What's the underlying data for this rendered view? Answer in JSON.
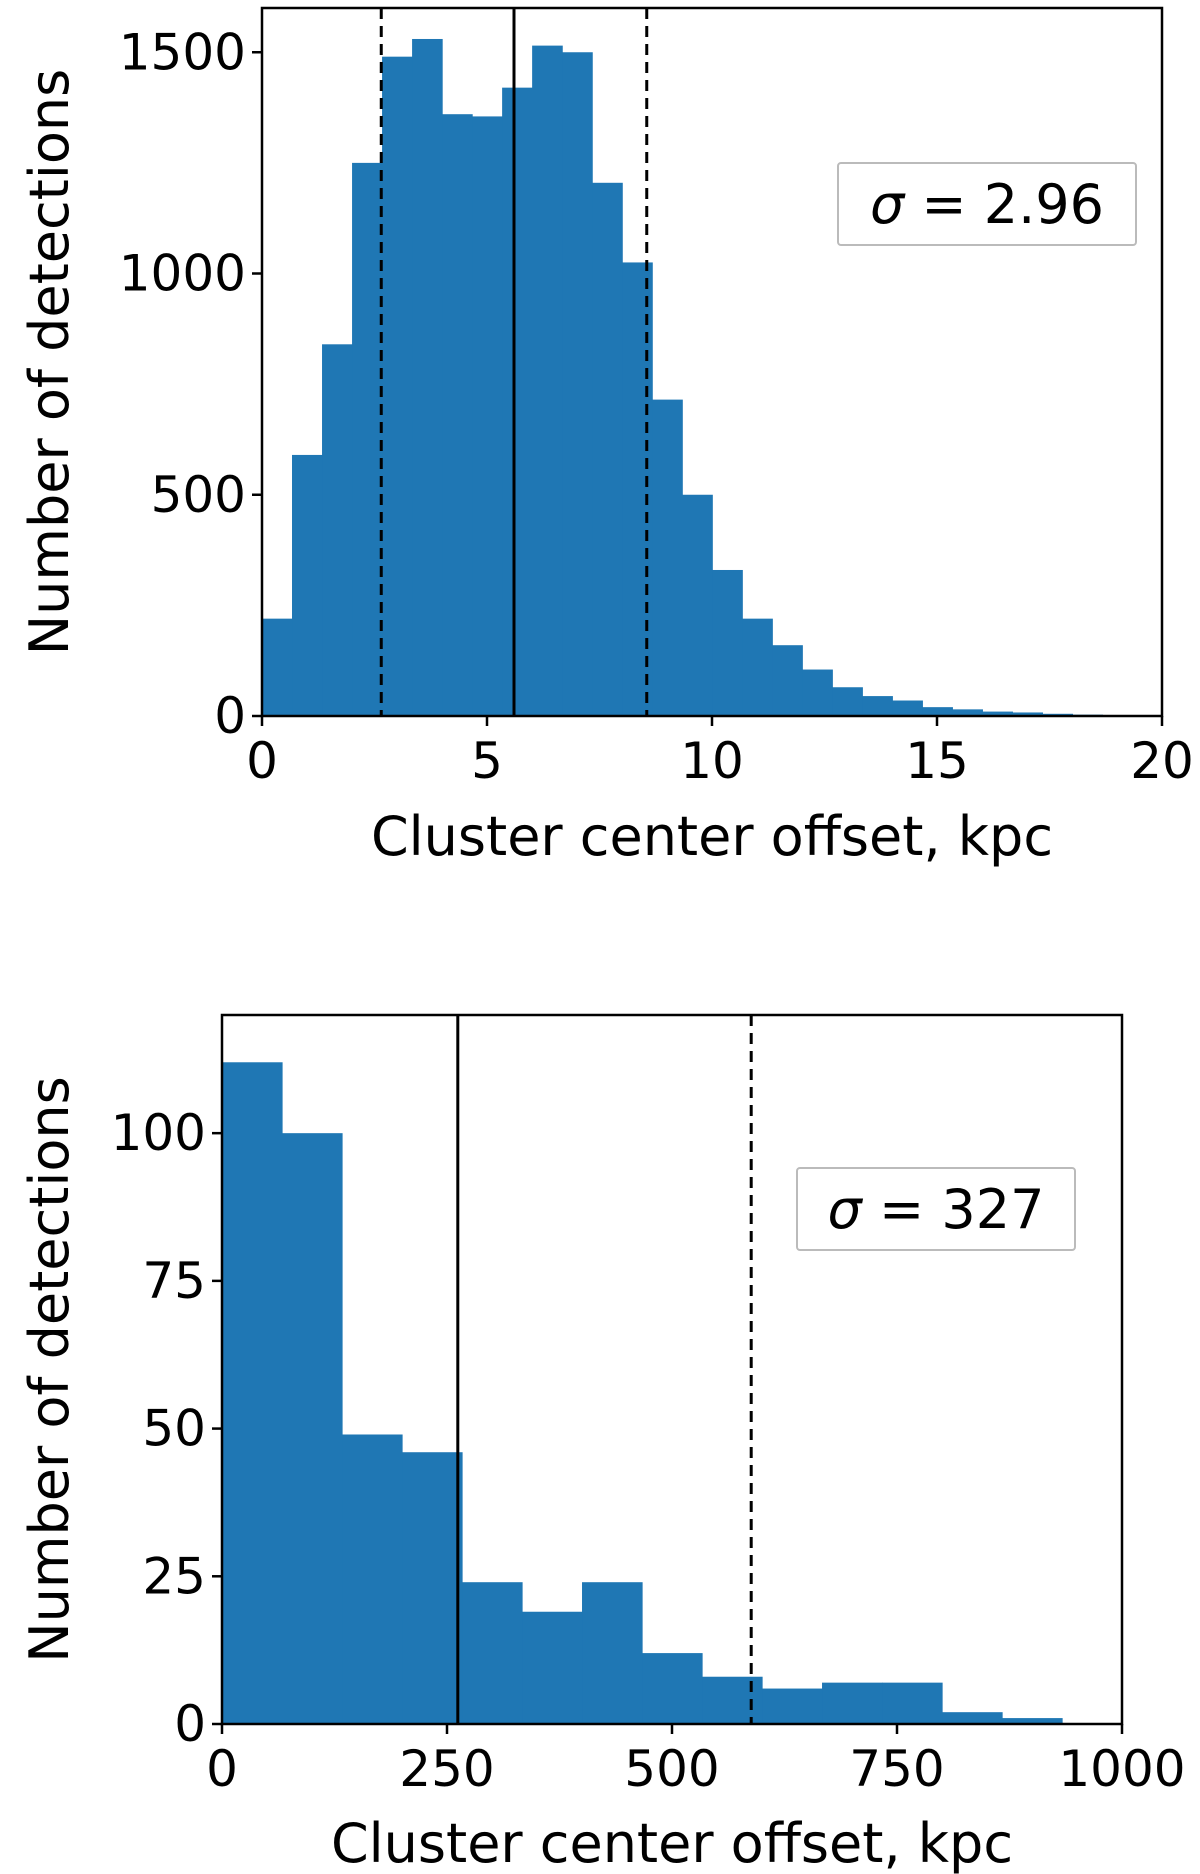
{
  "chart_data": [
    {
      "type": "bar",
      "subtype": "histogram",
      "xlabel": "Cluster center offset, kpc",
      "ylabel": "Number of detections",
      "xlim": [
        0,
        20
      ],
      "ylim": [
        0,
        1600
      ],
      "xticks": [
        0,
        5,
        10,
        15,
        20
      ],
      "yticks": [
        0,
        500,
        1000,
        1500
      ],
      "bin_width": 0.667,
      "bin_edges_start": 0,
      "values": [
        220,
        590,
        840,
        1250,
        1490,
        1530,
        1360,
        1355,
        1420,
        1515,
        1500,
        1205,
        1025,
        715,
        500,
        330,
        220,
        160,
        105,
        65,
        45,
        35,
        20,
        15,
        10,
        8,
        5,
        3,
        2,
        1
      ],
      "bar_color": "#1f77b4",
      "vlines": [
        {
          "x": 2.65,
          "style": "dashed"
        },
        {
          "x": 5.6,
          "style": "solid"
        },
        {
          "x": 8.55,
          "style": "dashed"
        }
      ],
      "annotation": {
        "symbol": "σ",
        "text": " = 2.96",
        "location": "upper-right"
      },
      "grid": false,
      "legend": "none"
    },
    {
      "type": "bar",
      "subtype": "histogram",
      "xlabel": "Cluster center offset, kpc",
      "ylabel": "Number of detections",
      "xlim": [
        0,
        1000
      ],
      "ylim": [
        0,
        120
      ],
      "xticks": [
        0,
        250,
        500,
        750,
        1000
      ],
      "yticks": [
        0,
        25,
        50,
        75,
        100
      ],
      "bin_width": 66.67,
      "bin_edges_start": 0,
      "values": [
        112,
        100,
        49,
        46,
        24,
        19,
        24,
        12,
        8,
        6,
        7,
        7,
        2,
        1
      ],
      "bar_color": "#1f77b4",
      "vlines": [
        {
          "x": 262,
          "style": "solid"
        },
        {
          "x": 588,
          "style": "dashed"
        }
      ],
      "annotation": {
        "symbol": "σ",
        "text": " = 327",
        "location": "right"
      },
      "grid": false,
      "legend": "none"
    }
  ]
}
